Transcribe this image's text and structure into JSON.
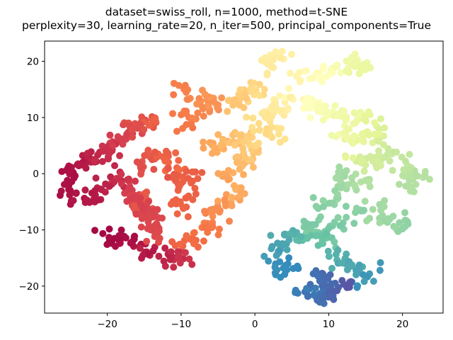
{
  "chart_data": {
    "type": "scatter",
    "title": [
      "dataset=swiss_roll, n=1000, method=t-SNE",
      "perplexity=30, learning_rate=20, n_iter=500, principal_components=True"
    ],
    "xlabel": "",
    "ylabel": "",
    "xlim": [
      -28.5,
      25.5
    ],
    "ylim": [
      -24.8,
      23.6
    ],
    "xticks": [
      -20,
      -10,
      0,
      10,
      20
    ],
    "yticks": [
      -20,
      -10,
      0,
      10,
      20
    ],
    "xtick_labels": [
      "−20",
      "−10",
      "0",
      "10",
      "20"
    ],
    "ytick_labels": [
      "−20",
      "−10",
      "0",
      "10",
      "20"
    ],
    "grid": false,
    "legend": "none",
    "colormap": "Spectral",
    "marker_color": "colormap value t along the roll (0 = dark red, 1 = dark blue)",
    "path_segments": [
      {
        "x": [
          -26.0,
          -25.0,
          -22.5,
          -20.5,
          -19.0,
          -17.5,
          -16.5,
          -15.0,
          -14.0,
          -13.3
        ],
        "y": [
          0.0,
          1.2,
          2.5,
          3.2,
          5.0,
          7.0,
          8.2,
          9.0,
          9.5,
          9.0
        ],
        "t": [
          0.02,
          0.03,
          0.05,
          0.07,
          0.09,
          0.11,
          0.13,
          0.15,
          0.17,
          0.18
        ],
        "n": 110
      },
      {
        "x": [
          -25.5,
          -24.0,
          -22.0,
          -21.0,
          -19.0,
          -17.5,
          -17.0,
          -16.0,
          -15.2,
          -14.5
        ],
        "y": [
          -2.0,
          -4.0,
          -4.5,
          -2.5,
          -1.5,
          -0.8,
          -3.0,
          -5.0,
          -6.5,
          -4.0
        ],
        "t": [
          0.02,
          0.03,
          0.04,
          0.05,
          0.06,
          0.08,
          0.1,
          0.12,
          0.14,
          0.16
        ],
        "n": 90
      },
      {
        "x": [
          -20.5,
          -18.0,
          -16.0,
          -14.5,
          -13.5,
          -12.5,
          -11.0,
          -10.0,
          -10.0
        ],
        "y": [
          -10.8,
          -11.5,
          -12.5,
          -13.5,
          -14.0,
          -14.5,
          -15.0,
          -15.5,
          -14.0
        ],
        "t": [
          0.01,
          0.02,
          0.03,
          0.04,
          0.05,
          0.06,
          0.07,
          0.08,
          0.09
        ],
        "n": 60
      },
      {
        "x": [
          -16.5,
          -15.0,
          -14.2,
          -13.8,
          -13.0
        ],
        "y": [
          -4.0,
          -6.0,
          -7.5,
          -9.5,
          -11.0
        ],
        "t": [
          0.1,
          0.11,
          0.12,
          0.12,
          0.13
        ],
        "n": 45
      },
      {
        "x": [
          -16.0,
          -14.5,
          -13.0,
          -12.0,
          -11.5,
          -11.0
        ],
        "y": [
          1.0,
          2.5,
          3.5,
          2.8,
          1.0,
          -1.0
        ],
        "t": [
          0.13,
          0.15,
          0.17,
          0.18,
          0.19,
          0.2
        ],
        "n": 45
      },
      {
        "x": [
          -13.5,
          -12.0,
          -10.5,
          -9.0,
          -8.0,
          -10.0,
          -10.5
        ],
        "y": [
          0.5,
          0.0,
          0.0,
          0.2,
          0.0,
          -5.0,
          -8.0
        ],
        "t": [
          0.14,
          0.15,
          0.16,
          0.17,
          0.17,
          0.18,
          0.18
        ],
        "n": 40
      },
      {
        "x": [
          -10.0,
          -8.0,
          -6.5,
          -5.5,
          -4.5,
          -3.0,
          -2.0
        ],
        "y": [
          -13.0,
          -11.5,
          -9.5,
          -7.5,
          -5.5,
          -4.0,
          -2.5
        ],
        "t": [
          0.18,
          0.2,
          0.22,
          0.24,
          0.26,
          0.29,
          0.31
        ],
        "n": 60
      },
      {
        "x": [
          -4.0,
          -3.0,
          -2.0,
          -1.5,
          -1.0
        ],
        "y": [
          -1.0,
          0.5,
          1.5,
          3.0,
          4.0
        ],
        "t": [
          0.28,
          0.3,
          0.32,
          0.34,
          0.36
        ],
        "n": 35
      },
      {
        "x": [
          -11.5,
          -10.0,
          -8.5,
          -7.0,
          -6.5,
          -5.5,
          -8.5,
          -9.0,
          -10.0
        ],
        "y": [
          14.5,
          15.5,
          14.0,
          12.0,
          14.5,
          13.5,
          9.0,
          8.0,
          12.0
        ],
        "t": [
          0.22,
          0.23,
          0.24,
          0.25,
          0.26,
          0.27,
          0.22,
          0.21,
          0.23
        ],
        "n": 50
      },
      {
        "x": [
          -7.0,
          -5.5,
          -4.0,
          -2.5,
          -1.0,
          0.5,
          2.0,
          3.0
        ],
        "y": [
          5.0,
          4.5,
          5.5,
          7.0,
          6.0,
          6.5,
          8.0,
          7.5
        ],
        "t": [
          0.28,
          0.3,
          0.32,
          0.34,
          0.36,
          0.38,
          0.4,
          0.42
        ],
        "n": 60
      },
      {
        "x": [
          -3.5,
          -2.5,
          -1.5,
          -0.5,
          0.5
        ],
        "y": [
          11.0,
          12.5,
          14.0,
          15.0,
          14.0
        ],
        "t": [
          0.33,
          0.35,
          0.37,
          0.38,
          0.4
        ],
        "n": 30
      },
      {
        "x": [
          0.0,
          2.0,
          3.0,
          4.5,
          5.5,
          7.0,
          8.5
        ],
        "y": [
          9.5,
          10.5,
          12.0,
          13.5,
          14.0,
          12.5,
          11.0
        ],
        "t": [
          0.4,
          0.42,
          0.44,
          0.46,
          0.48,
          0.5,
          0.52
        ],
        "n": 50
      },
      {
        "x": [
          1.0,
          2.5,
          3.5,
          4.5
        ],
        "y": [
          18.5,
          20.5,
          21.0,
          21.0
        ],
        "t": [
          0.43,
          0.44,
          0.45,
          0.45
        ],
        "n": 25
      },
      {
        "x": [
          5.0,
          7.0,
          9.0,
          10.5,
          11.5,
          13.0,
          14.0,
          14.8
        ],
        "y": [
          17.5,
          17.0,
          17.5,
          18.5,
          19.5,
          20.5,
          19.5,
          18.5
        ],
        "t": [
          0.46,
          0.48,
          0.5,
          0.52,
          0.54,
          0.56,
          0.57,
          0.58
        ],
        "n": 50
      },
      {
        "x": [
          8.5,
          10.5,
          12.0,
          14.0,
          15.5,
          17.0,
          17.5
        ],
        "y": [
          11.5,
          11.0,
          10.0,
          9.5,
          10.0,
          9.5,
          8.0
        ],
        "t": [
          0.52,
          0.54,
          0.56,
          0.58,
          0.6,
          0.61,
          0.62
        ],
        "n": 45
      },
      {
        "x": [
          11.0,
          12.5,
          14.0,
          15.5,
          17.0
        ],
        "y": [
          7.0,
          6.5,
          6.0,
          7.0,
          5.5
        ],
        "t": [
          0.55,
          0.57,
          0.58,
          0.6,
          0.61
        ],
        "n": 30
      },
      {
        "x": [
          12.0,
          13.5,
          15.0,
          16.5,
          17.5
        ],
        "y": [
          3.0,
          2.0,
          2.0,
          3.0,
          2.5
        ],
        "t": [
          0.6,
          0.62,
          0.63,
          0.64,
          0.65
        ],
        "n": 30
      },
      {
        "x": [
          17.5,
          19.0,
          20.0,
          21.0,
          22.5,
          20.5,
          19.0
        ],
        "y": [
          4.5,
          3.5,
          2.0,
          0.0,
          0.5,
          -2.0,
          -1.0
        ],
        "t": [
          0.63,
          0.65,
          0.66,
          0.67,
          0.68,
          0.69,
          0.67
        ],
        "n": 40
      },
      {
        "x": [
          16.0,
          14.5,
          13.0,
          12.0,
          11.5,
          12.0
        ],
        "y": [
          -1.0,
          -1.5,
          -2.0,
          -1.0,
          0.0,
          -3.0
        ],
        "t": [
          0.68,
          0.69,
          0.7,
          0.71,
          0.71,
          0.72
        ],
        "n": 30
      },
      {
        "x": [
          15.5,
          16.5,
          18.0,
          19.0,
          20.5
        ],
        "y": [
          -5.0,
          -6.5,
          -8.0,
          -9.5,
          -9.0
        ],
        "t": [
          0.7,
          0.71,
          0.72,
          0.73,
          0.74
        ],
        "n": 30
      },
      {
        "x": [
          12.0,
          11.0,
          10.0,
          9.0,
          8.0,
          7.0,
          7.5
        ],
        "y": [
          -4.0,
          -3.5,
          -4.5,
          -6.5,
          -8.5,
          -10.0,
          -9.0
        ],
        "t": [
          0.72,
          0.73,
          0.74,
          0.75,
          0.76,
          0.77,
          0.77
        ],
        "n": 35
      },
      {
        "x": [
          14.0,
          13.0,
          12.0,
          11.0,
          10.0,
          9.5
        ],
        "y": [
          -6.0,
          -7.5,
          -8.5,
          -9.5,
          -11.0,
          -12.0
        ],
        "t": [
          0.74,
          0.75,
          0.76,
          0.77,
          0.78,
          0.79
        ],
        "n": 25
      },
      {
        "x": [
          9.0,
          8.0,
          7.0,
          6.0,
          5.0,
          4.0,
          3.5
        ],
        "y": [
          -11.0,
          -11.5,
          -12.0,
          -11.0,
          -10.5,
          -11.5,
          -13.0
        ],
        "t": [
          0.79,
          0.8,
          0.81,
          0.82,
          0.83,
          0.84,
          0.85
        ],
        "n": 30
      },
      {
        "x": [
          3.5,
          3.0,
          2.5,
          2.0,
          3.0,
          4.0,
          5.5
        ],
        "y": [
          -13.0,
          -14.0,
          -15.0,
          -16.0,
          -17.0,
          -17.5,
          -17.0
        ],
        "t": [
          0.85,
          0.86,
          0.87,
          0.88,
          0.89,
          0.89,
          0.9
        ],
        "n": 30
      },
      {
        "x": [
          10.0,
          11.5,
          13.0,
          14.0,
          15.0,
          16.0,
          15.0,
          13.0
        ],
        "y": [
          -14.0,
          -15.5,
          -16.5,
          -17.0,
          -17.5,
          -17.0,
          -19.0,
          -20.0
        ],
        "t": [
          0.82,
          0.83,
          0.84,
          0.85,
          0.86,
          0.87,
          0.88,
          0.89
        ],
        "n": 35
      },
      {
        "x": [
          6.0,
          7.5,
          9.0,
          10.0,
          11.0,
          12.0,
          13.5
        ],
        "y": [
          -20.5,
          -21.5,
          -22.0,
          -21.5,
          -20.0,
          -19.0,
          -20.0
        ],
        "t": [
          0.91,
          0.93,
          0.95,
          0.96,
          0.97,
          0.98,
          0.99
        ],
        "n": 45
      },
      {
        "x": [
          8.0,
          8.5,
          9.5,
          10.5
        ],
        "y": [
          -17.5,
          -18.5,
          -19.5,
          -18.5
        ],
        "t": [
          0.93,
          0.94,
          0.95,
          0.96
        ],
        "n": 20
      }
    ]
  }
}
